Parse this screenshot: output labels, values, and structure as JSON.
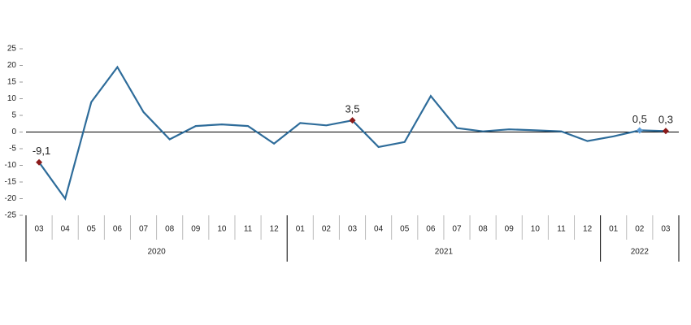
{
  "chart_data": {
    "type": "line",
    "groups": [
      {
        "label": "2020",
        "categories": [
          "03",
          "04",
          "05",
          "06",
          "07",
          "08",
          "09",
          "10",
          "11",
          "12"
        ]
      },
      {
        "label": "2021",
        "categories": [
          "01",
          "02",
          "03",
          "04",
          "05",
          "06",
          "07",
          "08",
          "09",
          "10",
          "11",
          "12"
        ]
      },
      {
        "label": "2022",
        "categories": [
          "01",
          "02",
          "03"
        ]
      }
    ],
    "values": [
      -9.1,
      -20,
      9,
      19.5,
      6,
      -2.2,
      1.8,
      2.3,
      1.8,
      -3.5,
      2.7,
      2,
      3.5,
      -4.5,
      -3,
      10.8,
      1.2,
      0.2,
      0.8,
      0.5,
      0.2,
      -2.7,
      -1.3,
      0.5,
      0.3
    ],
    "value_labels": [
      "-9,1",
      null,
      null,
      null,
      null,
      null,
      null,
      null,
      null,
      null,
      null,
      null,
      "3,5",
      null,
      null,
      null,
      null,
      null,
      null,
      null,
      null,
      null,
      null,
      "0,5",
      "0,3"
    ],
    "marker_colors": [
      "#8b1a1a",
      null,
      null,
      null,
      null,
      null,
      null,
      null,
      null,
      null,
      null,
      null,
      "#8b1a1a",
      null,
      null,
      null,
      null,
      null,
      null,
      null,
      null,
      null,
      null,
      "#5b9bd5",
      "#8b1a1a"
    ],
    "color": "#2e6c9a",
    "ylim": [
      -25,
      25
    ],
    "yticks": [
      -25,
      -20,
      -15,
      -10,
      -5,
      0,
      5,
      10,
      15,
      20,
      25
    ]
  }
}
